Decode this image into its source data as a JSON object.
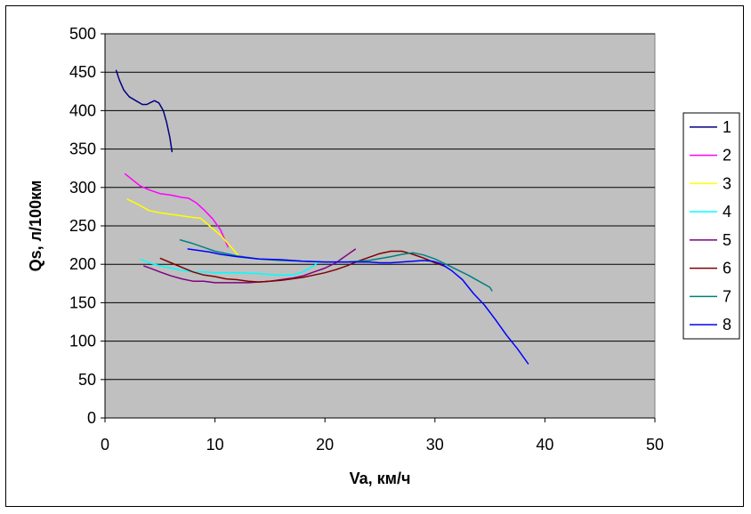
{
  "chart_data": {
    "type": "line",
    "title": "",
    "xlabel": "Va, км/ч",
    "ylabel": "Qs, л/100км",
    "xlim": [
      0,
      50
    ],
    "ylim": [
      0,
      500
    ],
    "xticks": [
      0,
      10,
      20,
      30,
      40,
      50
    ],
    "yticks": [
      0,
      50,
      100,
      150,
      200,
      250,
      300,
      350,
      400,
      450,
      500
    ],
    "plot_background": "#c0c0c0",
    "grid": "horizontal",
    "legend_position": "right",
    "series": [
      {
        "name": "1",
        "color": "#000080",
        "points": [
          [
            1,
            453
          ],
          [
            1.3,
            440
          ],
          [
            1.7,
            427
          ],
          [
            2.2,
            418
          ],
          [
            2.8,
            413
          ],
          [
            3.4,
            408
          ],
          [
            3.8,
            408
          ],
          [
            4.2,
            411
          ],
          [
            4.5,
            413
          ],
          [
            4.9,
            410
          ],
          [
            5.3,
            400
          ],
          [
            5.6,
            385
          ],
          [
            5.9,
            365
          ],
          [
            6.1,
            346
          ]
        ]
      },
      {
        "name": "2",
        "color": "#ff00ff",
        "points": [
          [
            1.8,
            318
          ],
          [
            2.5,
            310
          ],
          [
            3.2,
            302
          ],
          [
            4,
            297
          ],
          [
            5,
            292
          ],
          [
            6,
            290
          ],
          [
            7,
            287
          ],
          [
            7.6,
            286
          ],
          [
            8.3,
            280
          ],
          [
            9,
            271
          ],
          [
            9.8,
            259
          ],
          [
            10.5,
            245
          ],
          [
            11.2,
            222
          ]
        ]
      },
      {
        "name": "3",
        "color": "#ffff00",
        "points": [
          [
            2,
            285
          ],
          [
            3,
            278
          ],
          [
            4,
            270
          ],
          [
            5,
            267
          ],
          [
            6,
            265
          ],
          [
            7,
            263
          ],
          [
            8,
            261
          ],
          [
            8.7,
            260
          ],
          [
            9.5,
            250
          ],
          [
            10.5,
            238
          ],
          [
            11.5,
            222
          ],
          [
            12.2,
            210
          ]
        ]
      },
      {
        "name": "4",
        "color": "#00ffff",
        "points": [
          [
            3.2,
            207
          ],
          [
            4,
            202
          ],
          [
            5,
            198
          ],
          [
            6,
            195
          ],
          [
            7,
            192
          ],
          [
            8,
            190
          ],
          [
            9,
            190
          ],
          [
            10,
            189
          ],
          [
            12,
            189
          ],
          [
            14,
            188
          ],
          [
            15.5,
            186
          ],
          [
            17,
            186
          ],
          [
            18,
            190
          ],
          [
            19,
            198
          ],
          [
            19.5,
            204
          ]
        ]
      },
      {
        "name": "5",
        "color": "#800080",
        "points": [
          [
            3.5,
            198
          ],
          [
            4.3,
            194
          ],
          [
            5,
            190
          ],
          [
            6,
            185
          ],
          [
            7,
            181
          ],
          [
            8,
            178
          ],
          [
            9,
            178
          ],
          [
            10,
            176
          ],
          [
            11,
            176
          ],
          [
            12,
            176
          ],
          [
            13,
            176
          ],
          [
            14,
            177
          ],
          [
            15,
            178
          ],
          [
            16,
            180
          ],
          [
            17,
            182
          ],
          [
            18,
            185
          ],
          [
            19,
            190
          ],
          [
            20,
            195
          ],
          [
            21,
            202
          ],
          [
            22,
            212
          ],
          [
            22.8,
            220
          ]
        ]
      },
      {
        "name": "6",
        "color": "#800000",
        "points": [
          [
            5,
            208
          ],
          [
            6,
            202
          ],
          [
            7,
            196
          ],
          [
            8,
            190
          ],
          [
            9,
            186
          ],
          [
            10,
            184
          ],
          [
            11,
            181
          ],
          [
            12,
            180
          ],
          [
            13,
            178
          ],
          [
            14,
            177
          ],
          [
            15,
            178
          ],
          [
            16,
            179
          ],
          [
            17,
            181
          ],
          [
            18,
            183
          ],
          [
            19,
            186
          ],
          [
            20,
            189
          ],
          [
            21,
            193
          ],
          [
            22,
            198
          ],
          [
            23,
            204
          ],
          [
            24,
            209
          ],
          [
            25,
            214
          ],
          [
            26,
            217
          ],
          [
            27,
            217
          ],
          [
            28,
            213
          ],
          [
            29,
            208
          ],
          [
            30,
            202
          ],
          [
            31,
            197
          ]
        ]
      },
      {
        "name": "7",
        "color": "#008080",
        "points": [
          [
            6.8,
            232
          ],
          [
            8,
            227
          ],
          [
            9,
            222
          ],
          [
            10,
            217
          ],
          [
            11,
            214
          ],
          [
            12,
            211
          ],
          [
            14,
            207
          ],
          [
            16,
            205
          ],
          [
            18,
            204
          ],
          [
            20,
            203
          ],
          [
            22,
            203
          ],
          [
            24,
            205
          ],
          [
            26,
            210
          ],
          [
            27,
            213
          ],
          [
            28,
            215
          ],
          [
            29,
            212
          ],
          [
            30,
            207
          ],
          [
            31,
            200
          ],
          [
            32,
            193
          ],
          [
            33,
            186
          ],
          [
            34,
            178
          ],
          [
            35,
            170
          ],
          [
            35.2,
            165
          ]
        ]
      },
      {
        "name": "8",
        "color": "#0000ff",
        "points": [
          [
            7.5,
            220
          ],
          [
            8.5,
            218
          ],
          [
            9.5,
            216
          ],
          [
            10.5,
            213
          ],
          [
            12,
            210
          ],
          [
            14,
            207
          ],
          [
            16,
            206
          ],
          [
            18,
            204
          ],
          [
            20,
            203
          ],
          [
            22,
            203
          ],
          [
            24,
            203
          ],
          [
            25,
            202
          ],
          [
            26,
            202
          ],
          [
            27,
            203
          ],
          [
            28,
            204
          ],
          [
            29,
            205
          ],
          [
            29.8,
            204
          ],
          [
            30.5,
            201
          ],
          [
            31.5,
            192
          ],
          [
            32.5,
            180
          ],
          [
            33.5,
            162
          ],
          [
            34.5,
            147
          ],
          [
            35.5,
            128
          ],
          [
            36.5,
            108
          ],
          [
            37.5,
            90
          ],
          [
            38.5,
            70
          ]
        ]
      }
    ]
  }
}
